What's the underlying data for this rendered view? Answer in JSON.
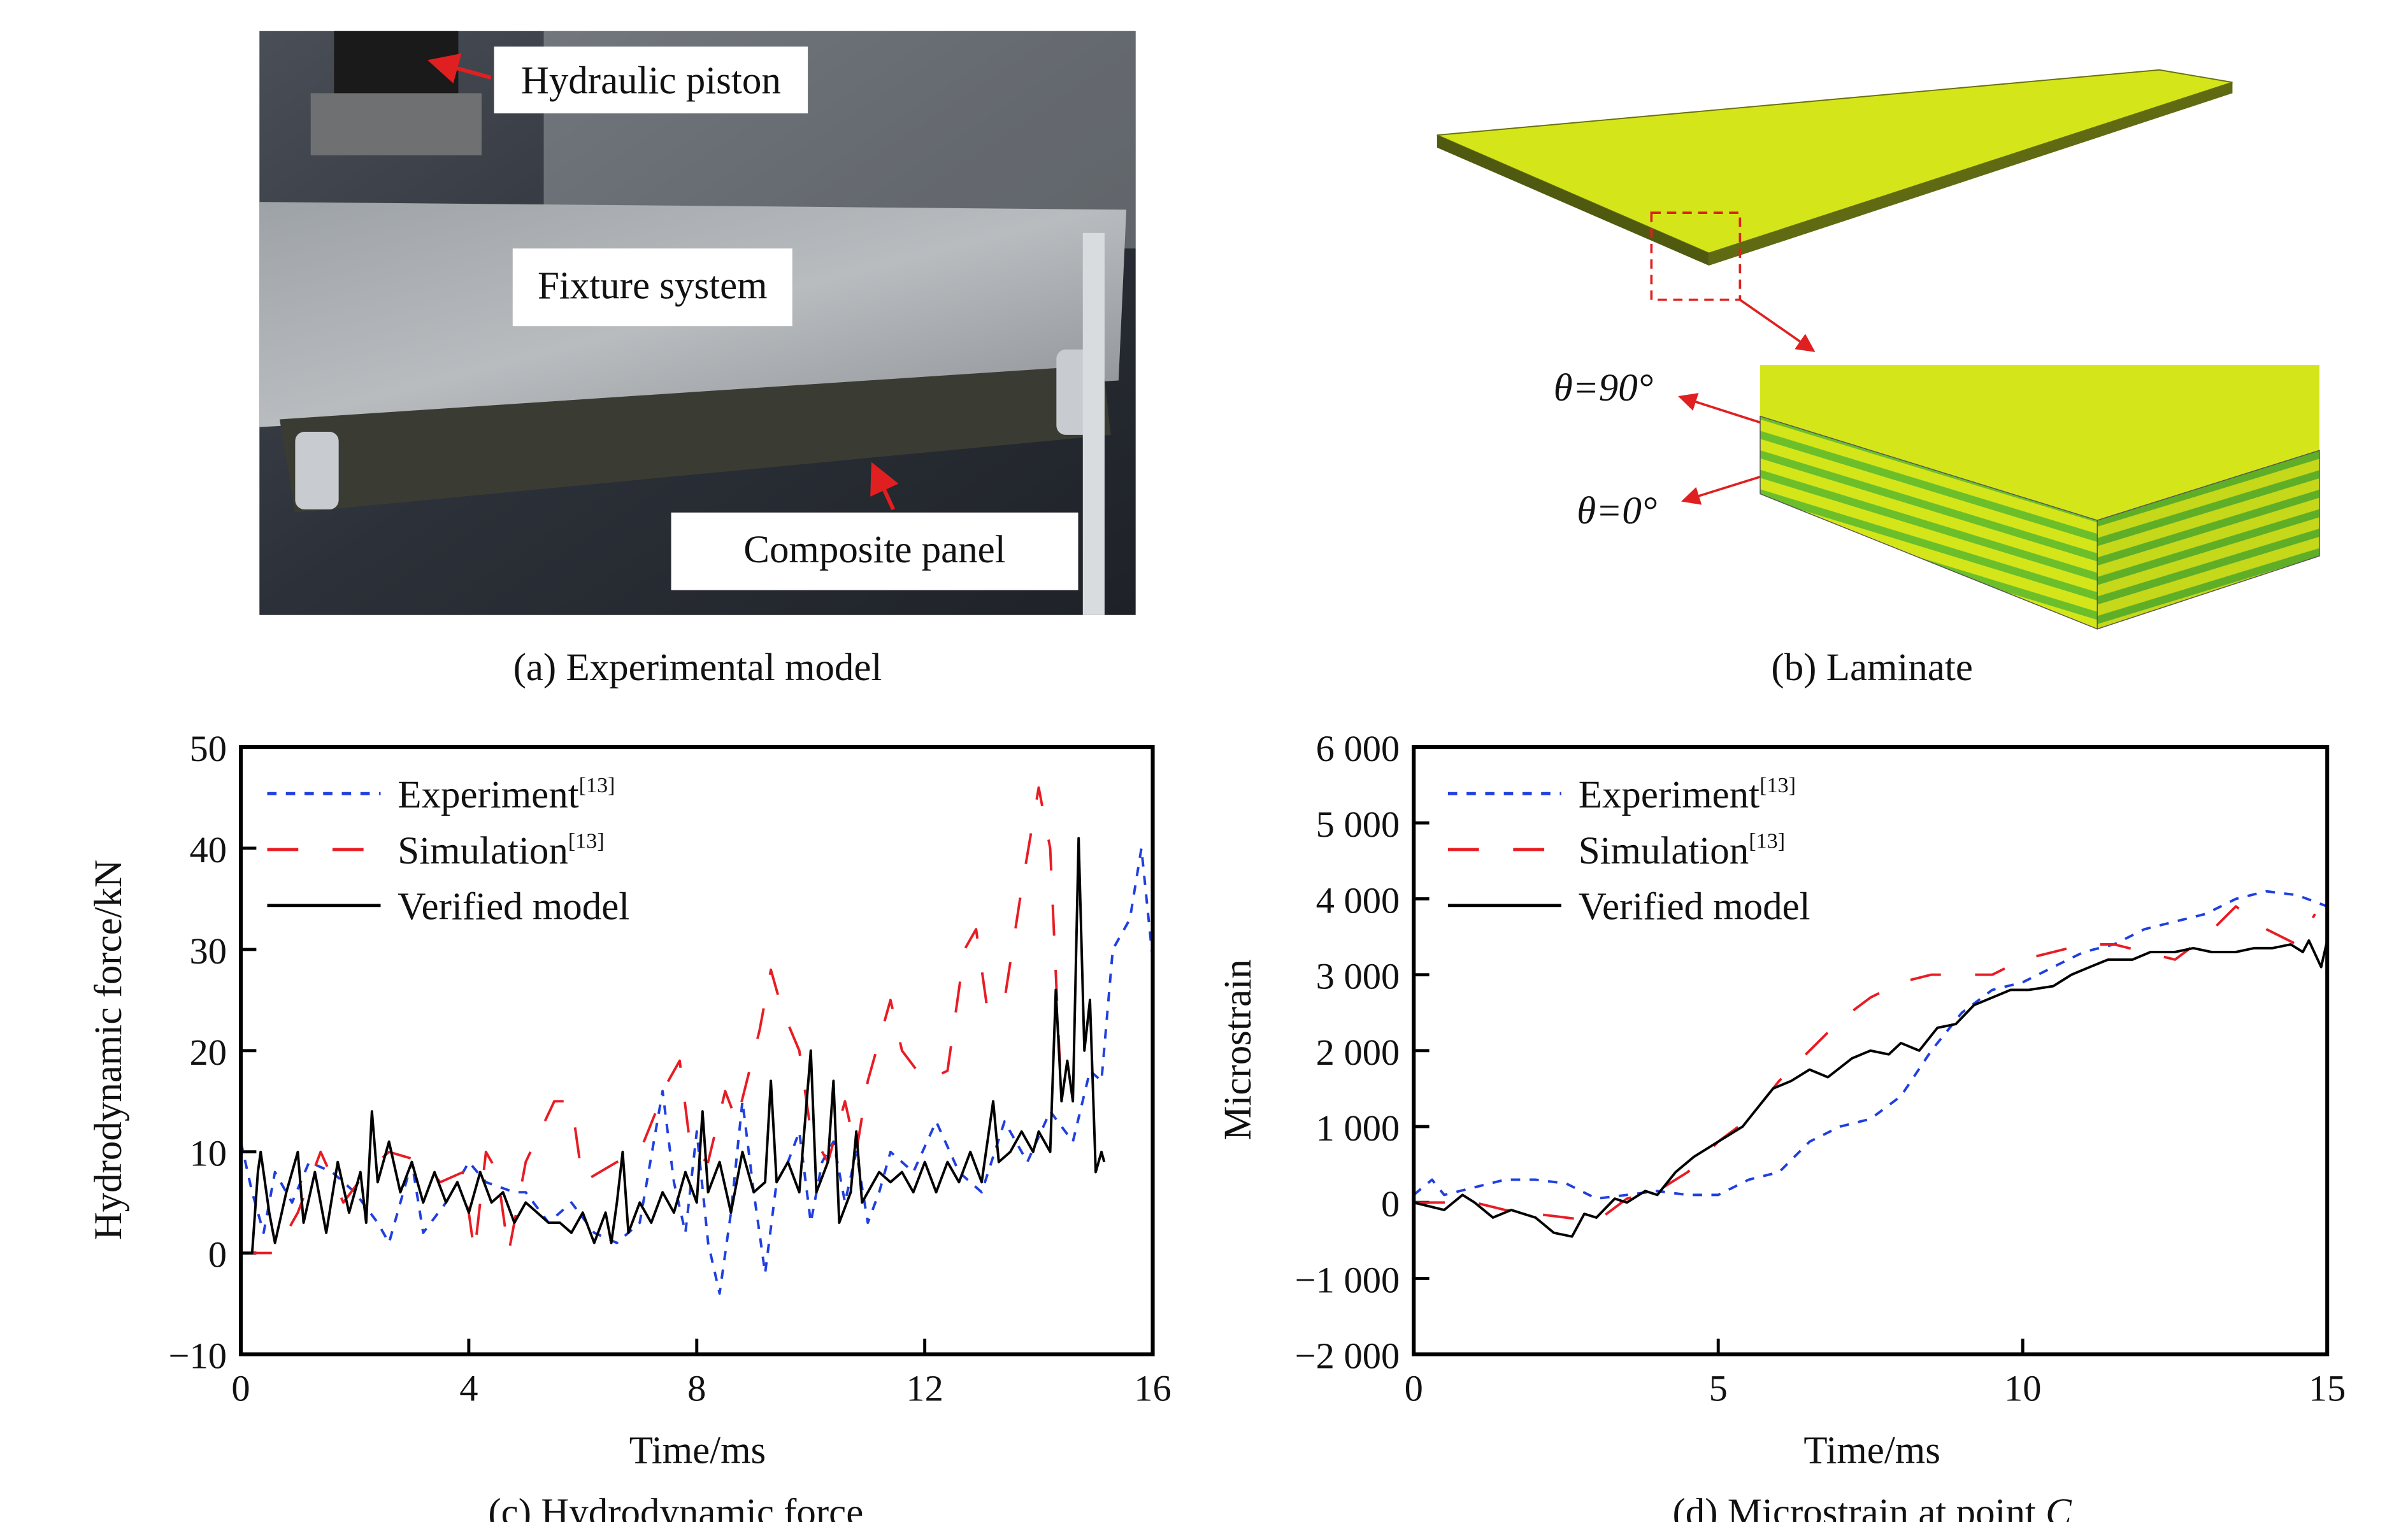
{
  "panel_a": {
    "caption": "(a) Experimental model",
    "labels": {
      "piston": "Hydraulic piston",
      "fixture": "Fixture system",
      "panel": "Composite panel"
    }
  },
  "panel_b": {
    "caption": "(b) Laminate",
    "angle_90": "θ=90°",
    "angle_0": "θ=0°",
    "colors": {
      "ply_yellow": "#d4e61a",
      "ply_green": "#6bbf2a",
      "callout": "#e02020"
    }
  },
  "colors": {
    "experiment": "#1f3fe0",
    "simulation": "#e81c24",
    "verified": "#000000"
  },
  "chart_data": [
    {
      "type": "line",
      "title": "(c) Hydrodynamic force",
      "xlabel": "Time/ms",
      "ylabel": "Hydrodynamic force/kN",
      "xlim": [
        0,
        16
      ],
      "ylim": [
        -10,
        50
      ],
      "xticks": [
        "0",
        "4",
        "8",
        "12",
        "16"
      ],
      "xtick_values": [
        0,
        4,
        8,
        12,
        16
      ],
      "yticks": [
        "50",
        "40",
        "30",
        "20",
        "10",
        "0",
        "−10"
      ],
      "ytick_values": [
        50,
        40,
        30,
        20,
        10,
        0,
        -10
      ],
      "legend_position": "top-left",
      "series": [
        {
          "name": "Experiment",
          "ref": "[13]",
          "style": "dotted",
          "x": [
            0,
            0.2,
            0.4,
            0.6,
            0.9,
            1.2,
            1.6,
            2.0,
            2.4,
            2.6,
            3.0,
            3.2,
            3.6,
            4.0,
            4.3,
            4.8,
            5.0,
            5.4,
            5.8,
            6.2,
            6.6,
            7.0,
            7.4,
            7.6,
            7.8,
            8.0,
            8.2,
            8.4,
            8.6,
            8.8,
            9.0,
            9.2,
            9.4,
            9.6,
            9.8,
            10.0,
            10.2,
            10.4,
            10.6,
            10.8,
            11.0,
            11.2,
            11.4,
            11.8,
            12.2,
            12.6,
            13.0,
            13.4,
            13.8,
            14.2,
            14.6,
            14.9,
            15.1,
            15.3,
            15.6,
            15.8,
            16.0
          ],
          "y": [
            11,
            6,
            2,
            8,
            5,
            9,
            8,
            6,
            3,
            1,
            9,
            2,
            5,
            9,
            7,
            6,
            6,
            3,
            5,
            2,
            1,
            3,
            16,
            7,
            2,
            12,
            1,
            -4,
            4,
            15,
            6,
            -2,
            7,
            9,
            12,
            3,
            9,
            11,
            5,
            10,
            3,
            6,
            10,
            8,
            13,
            8,
            6,
            13,
            9,
            14,
            11,
            18,
            17,
            30,
            33,
            40,
            29
          ]
        },
        {
          "name": "Simulation",
          "ref": "[13]",
          "style": "dashed",
          "x": [
            0,
            0.6,
            1.0,
            1.4,
            1.8,
            2.2,
            2.6,
            3.2,
            3.5,
            3.9,
            4.1,
            4.3,
            4.5,
            4.7,
            5.0,
            5.5,
            5.8,
            6.0,
            6.6,
            7.0,
            7.5,
            7.7,
            7.9,
            8.2,
            8.5,
            8.7,
            9.1,
            9.3,
            9.5,
            9.8,
            10.0,
            10.3,
            10.6,
            10.8,
            11.0,
            11.4,
            11.6,
            12.0,
            12.4,
            12.7,
            12.9,
            13.1,
            13.4,
            13.7,
            14.0,
            14.2,
            14.4
          ],
          "y": [
            0,
            0,
            4,
            10,
            5,
            8,
            10,
            9,
            7,
            8,
            0,
            10,
            8,
            0,
            9,
            15,
            15,
            7,
            9,
            10,
            17,
            19,
            10,
            9,
            16,
            13,
            22,
            28,
            24,
            20,
            12,
            9,
            15,
            10,
            17,
            25,
            20,
            17,
            18,
            30,
            32,
            24,
            25,
            36,
            46,
            40,
            15
          ]
        },
        {
          "name": "Verified model",
          "ref": "",
          "style": "solid",
          "x": [
            0,
            0.2,
            0.3,
            0.35,
            0.5,
            0.6,
            0.8,
            1.0,
            1.1,
            1.3,
            1.5,
            1.7,
            1.9,
            2.1,
            2.2,
            2.3,
            2.4,
            2.6,
            2.8,
            3.0,
            3.2,
            3.4,
            3.6,
            3.8,
            4.0,
            4.2,
            4.4,
            4.6,
            4.8,
            5.0,
            5.2,
            5.4,
            5.6,
            5.8,
            6.0,
            6.2,
            6.4,
            6.5,
            6.6,
            6.7,
            6.8,
            7.0,
            7.2,
            7.4,
            7.6,
            7.8,
            8.0,
            8.1,
            8.2,
            8.4,
            8.6,
            8.8,
            9.0,
            9.2,
            9.3,
            9.4,
            9.6,
            9.8,
            10.0,
            10.1,
            10.3,
            10.4,
            10.5,
            10.7,
            10.8,
            10.9,
            11.2,
            11.4,
            11.6,
            11.8,
            12.0,
            12.2,
            12.4,
            12.6,
            12.8,
            13.0,
            13.2,
            13.3,
            13.5,
            13.7,
            13.9,
            14.0,
            14.2,
            14.3,
            14.4,
            14.5,
            14.6,
            14.7,
            14.8,
            14.9,
            15.0,
            15.1,
            15.15
          ],
          "y": [
            0,
            0,
            8,
            10,
            4,
            1,
            6,
            10,
            3,
            8,
            2,
            9,
            4,
            8,
            3,
            14,
            7,
            11,
            6,
            9,
            5,
            8,
            5,
            7,
            4,
            8,
            5,
            6,
            3,
            5,
            4,
            3,
            3,
            2,
            4,
            1,
            4,
            1,
            5,
            10,
            2,
            5,
            3,
            6,
            4,
            8,
            5,
            14,
            6,
            9,
            4,
            10,
            6,
            7,
            17,
            7,
            9,
            6,
            20,
            6,
            9,
            17,
            3,
            6,
            12,
            5,
            8,
            7,
            8,
            6,
            9,
            6,
            9,
            7,
            10,
            7,
            15,
            9,
            10,
            12,
            10,
            12,
            10,
            26,
            15,
            19,
            15,
            41,
            20,
            25,
            8,
            10,
            9
          ]
        }
      ]
    },
    {
      "type": "line",
      "title": "(d) Microstrain at point ",
      "title_italic": "C",
      "xlabel": "Time/ms",
      "ylabel": "Microstrain",
      "xlim": [
        0,
        15
      ],
      "ylim": [
        -2000,
        6000
      ],
      "xticks": [
        "0",
        "5",
        "10",
        "15"
      ],
      "xtick_values": [
        0,
        5,
        10,
        15
      ],
      "yticks": [
        "6 000",
        "5 000",
        "4 000",
        "3 000",
        "2 000",
        "1 000",
        "0",
        "−1 000",
        "−2 000"
      ],
      "ytick_values": [
        6000,
        5000,
        4000,
        3000,
        2000,
        1000,
        0,
        -1000,
        -2000
      ],
      "legend_position": "top-left",
      "series": [
        {
          "name": "Experiment",
          "ref": "[13]",
          "style": "dotted",
          "x": [
            0,
            0.3,
            0.5,
            1,
            1.5,
            2,
            2.5,
            3,
            3.5,
            4,
            4.5,
            5,
            5.5,
            6,
            6.5,
            7,
            7.5,
            8,
            8.5,
            9,
            9.5,
            10,
            10.5,
            11,
            11.5,
            12,
            12.5,
            13,
            13.5,
            14,
            14.5,
            15
          ],
          "y": [
            100,
            300,
            100,
            200,
            300,
            300,
            250,
            50,
            100,
            150,
            100,
            100,
            300,
            400,
            800,
            1000,
            1100,
            1400,
            2000,
            2500,
            2800,
            2900,
            3100,
            3300,
            3400,
            3600,
            3700,
            3800,
            4000,
            4100,
            4050,
            3900
          ]
        },
        {
          "name": "Simulation",
          "ref": "[13]",
          "style": "dashed",
          "x": [
            0,
            1,
            1.5,
            2,
            2.5,
            3,
            3.5,
            4,
            4.5,
            5,
            5.5,
            6,
            6.5,
            7,
            7.5,
            8,
            8.5,
            9,
            9.5,
            10,
            10.5,
            11,
            11.5,
            12,
            12.5,
            13,
            13.5,
            14,
            14.5,
            14.8
          ],
          "y": [
            0,
            0,
            -100,
            -150,
            -200,
            -250,
            50,
            150,
            400,
            800,
            1100,
            1600,
            2000,
            2400,
            2700,
            2900,
            3000,
            3000,
            3000,
            3200,
            3300,
            3400,
            3400,
            3300,
            3200,
            3500,
            3900,
            3600,
            3400,
            3800
          ]
        },
        {
          "name": "Verified model",
          "ref": "",
          "style": "solid",
          "x": [
            0,
            0.5,
            0.8,
            1,
            1.3,
            1.6,
            2,
            2.3,
            2.6,
            2.8,
            3,
            3.3,
            3.5,
            3.8,
            4,
            4.3,
            4.6,
            5,
            5.4,
            5.6,
            5.9,
            6.2,
            6.5,
            6.8,
            7.2,
            7.5,
            7.8,
            8,
            8.3,
            8.6,
            8.9,
            9.2,
            9.5,
            9.8,
            10.1,
            10.5,
            10.8,
            11.1,
            11.4,
            11.8,
            12.1,
            12.5,
            12.8,
            13.1,
            13.5,
            13.8,
            14.1,
            14.4,
            14.6,
            14.7,
            14.9,
            15
          ],
          "y": [
            0,
            -100,
            100,
            0,
            -200,
            -100,
            -200,
            -400,
            -450,
            -150,
            -200,
            50,
            0,
            150,
            100,
            400,
            600,
            800,
            1000,
            1200,
            1500,
            1600,
            1750,
            1650,
            1900,
            2000,
            1950,
            2100,
            2000,
            2300,
            2350,
            2600,
            2700,
            2800,
            2800,
            2850,
            3000,
            3100,
            3200,
            3200,
            3300,
            3300,
            3350,
            3300,
            3300,
            3350,
            3350,
            3400,
            3300,
            3450,
            3100,
            3450
          ]
        }
      ]
    }
  ]
}
